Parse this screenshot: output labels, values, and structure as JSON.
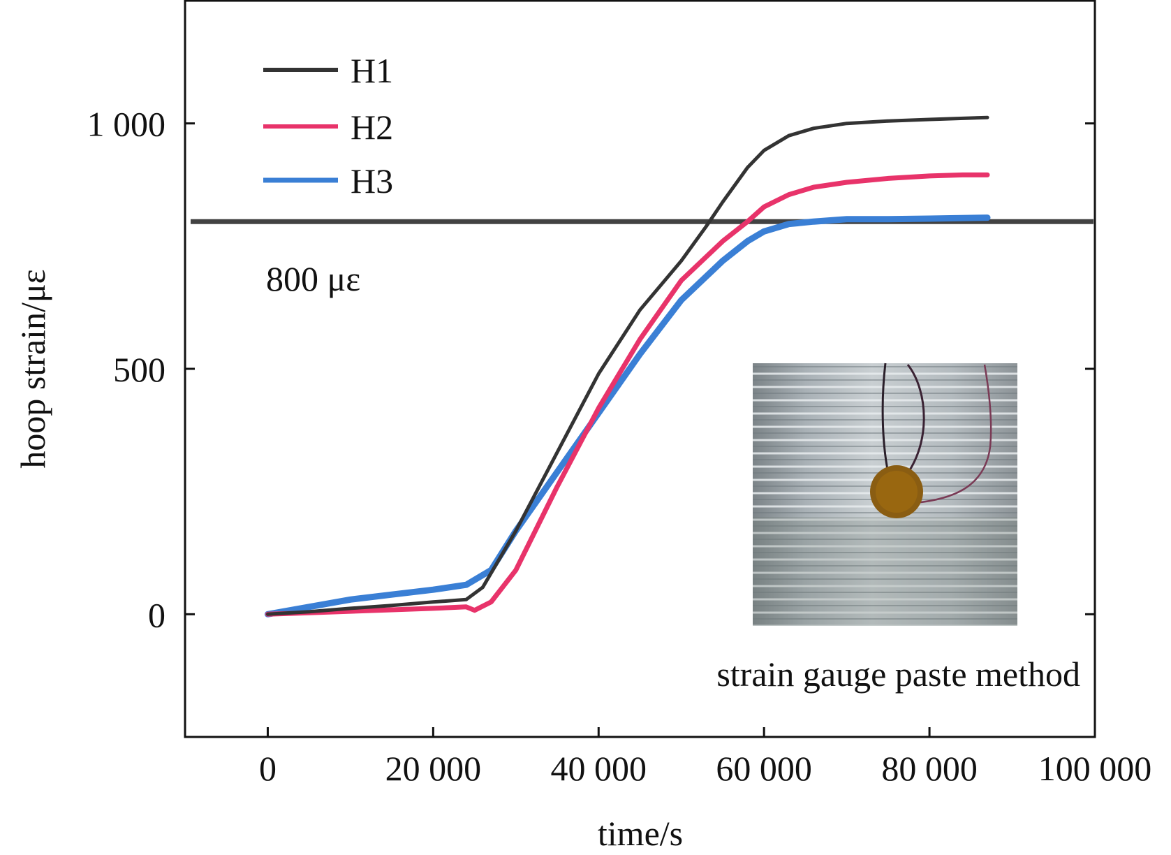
{
  "chart_data": {
    "type": "line",
    "xlabel": "time/s",
    "ylabel": "hoop strain/με",
    "xlim": [
      -10000,
      100000
    ],
    "ylim": [
      -250,
      1250
    ],
    "x_ticks": [
      0,
      20000,
      40000,
      60000,
      80000,
      100000
    ],
    "x_tick_labels": [
      "0",
      "20 000",
      "40 000",
      "60 000",
      "80 000",
      "100 000"
    ],
    "y_ticks": [
      0,
      500,
      1000
    ],
    "y_tick_labels": [
      "0",
      "500",
      "1 000"
    ],
    "grid": false,
    "legend_position": "top-left",
    "reference_line": {
      "y": 800,
      "label": "800 με",
      "color": "#222222"
    },
    "annotation": "strain gauge paste method",
    "inset": "photo of strain gauge pasted on wound cylinder",
    "series": [
      {
        "name": "H1",
        "color": "#333333",
        "x": [
          0,
          5000,
          10000,
          15000,
          20000,
          24000,
          26000,
          30000,
          35000,
          40000,
          45000,
          50000,
          53000,
          55000,
          58000,
          60000,
          63000,
          66000,
          70000,
          75000,
          80000,
          87000
        ],
        "y": [
          0,
          5,
          12,
          18,
          25,
          30,
          55,
          170,
          330,
          490,
          620,
          720,
          790,
          840,
          910,
          945,
          975,
          990,
          1000,
          1005,
          1008,
          1012
        ]
      },
      {
        "name": "H2",
        "color": "#e8336a",
        "x": [
          0,
          5000,
          10000,
          15000,
          20000,
          24000,
          25000,
          27000,
          30000,
          35000,
          40000,
          45000,
          50000,
          55000,
          58000,
          60000,
          63000,
          66000,
          70000,
          75000,
          80000,
          84000,
          87000
        ],
        "y": [
          0,
          3,
          6,
          9,
          12,
          15,
          8,
          25,
          90,
          260,
          420,
          560,
          680,
          760,
          800,
          830,
          855,
          870,
          880,
          888,
          893,
          895,
          895
        ]
      },
      {
        "name": "H3",
        "color": "#3a7fd5",
        "x": [
          0,
          5000,
          10000,
          15000,
          20000,
          24000,
          27000,
          30000,
          35000,
          40000,
          45000,
          50000,
          55000,
          58000,
          60000,
          63000,
          66000,
          70000,
          75000,
          80000,
          87000
        ],
        "y": [
          0,
          15,
          30,
          40,
          50,
          60,
          90,
          170,
          290,
          410,
          530,
          640,
          720,
          760,
          780,
          795,
          800,
          805,
          805,
          806,
          808
        ]
      }
    ]
  }
}
